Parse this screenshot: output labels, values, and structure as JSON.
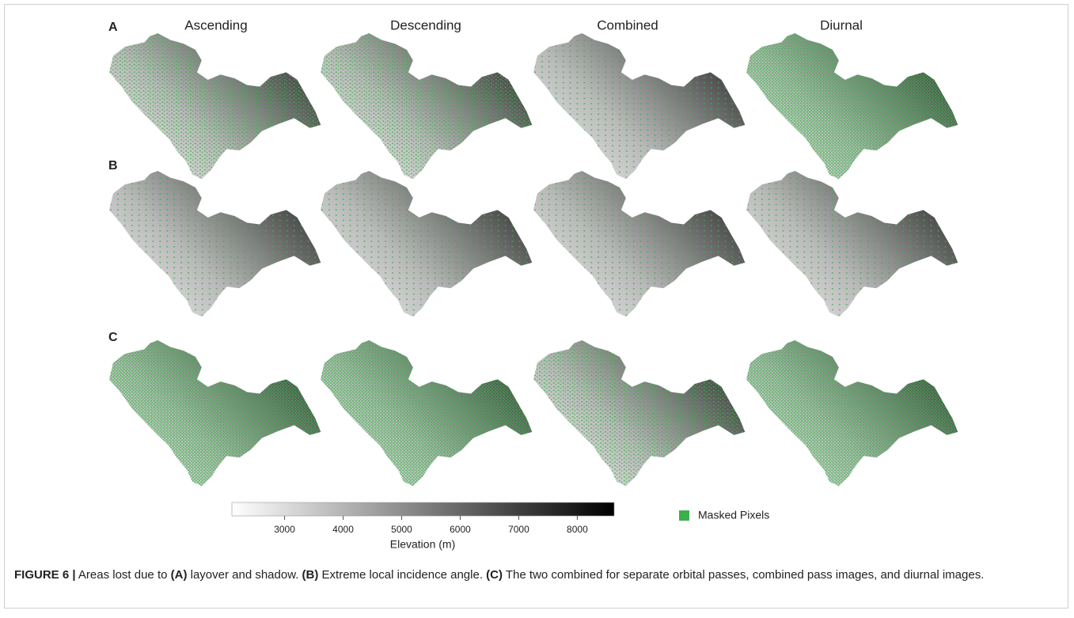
{
  "figure": {
    "columns": [
      "Ascending",
      "Descending",
      "Combined",
      "Diurnal"
    ],
    "rows": [
      "A",
      "B",
      "C"
    ],
    "colorbar": {
      "lim": [
        2100,
        8630
      ],
      "ticks": [
        3000,
        4000,
        5000,
        6000,
        7000,
        8000
      ],
      "label": "Elevation (m)"
    },
    "legend": "Masked Pixels",
    "caption": [
      {
        "text": "FIGURE 6 |",
        "bold": true
      },
      {
        "text": " Areas lost due to ",
        "bold": false
      },
      {
        "text": "(A)",
        "bold": true
      },
      {
        "text": " layover and shadow. ",
        "bold": false
      },
      {
        "text": "(B)",
        "bold": true
      },
      {
        "text": " Extreme local incidence angle. ",
        "bold": false
      },
      {
        "text": "(C)",
        "bold": true
      },
      {
        "text": " The two combined for separate orbital passes, combined pass images, and diurnal images.",
        "bold": false
      }
    ]
  }
}
